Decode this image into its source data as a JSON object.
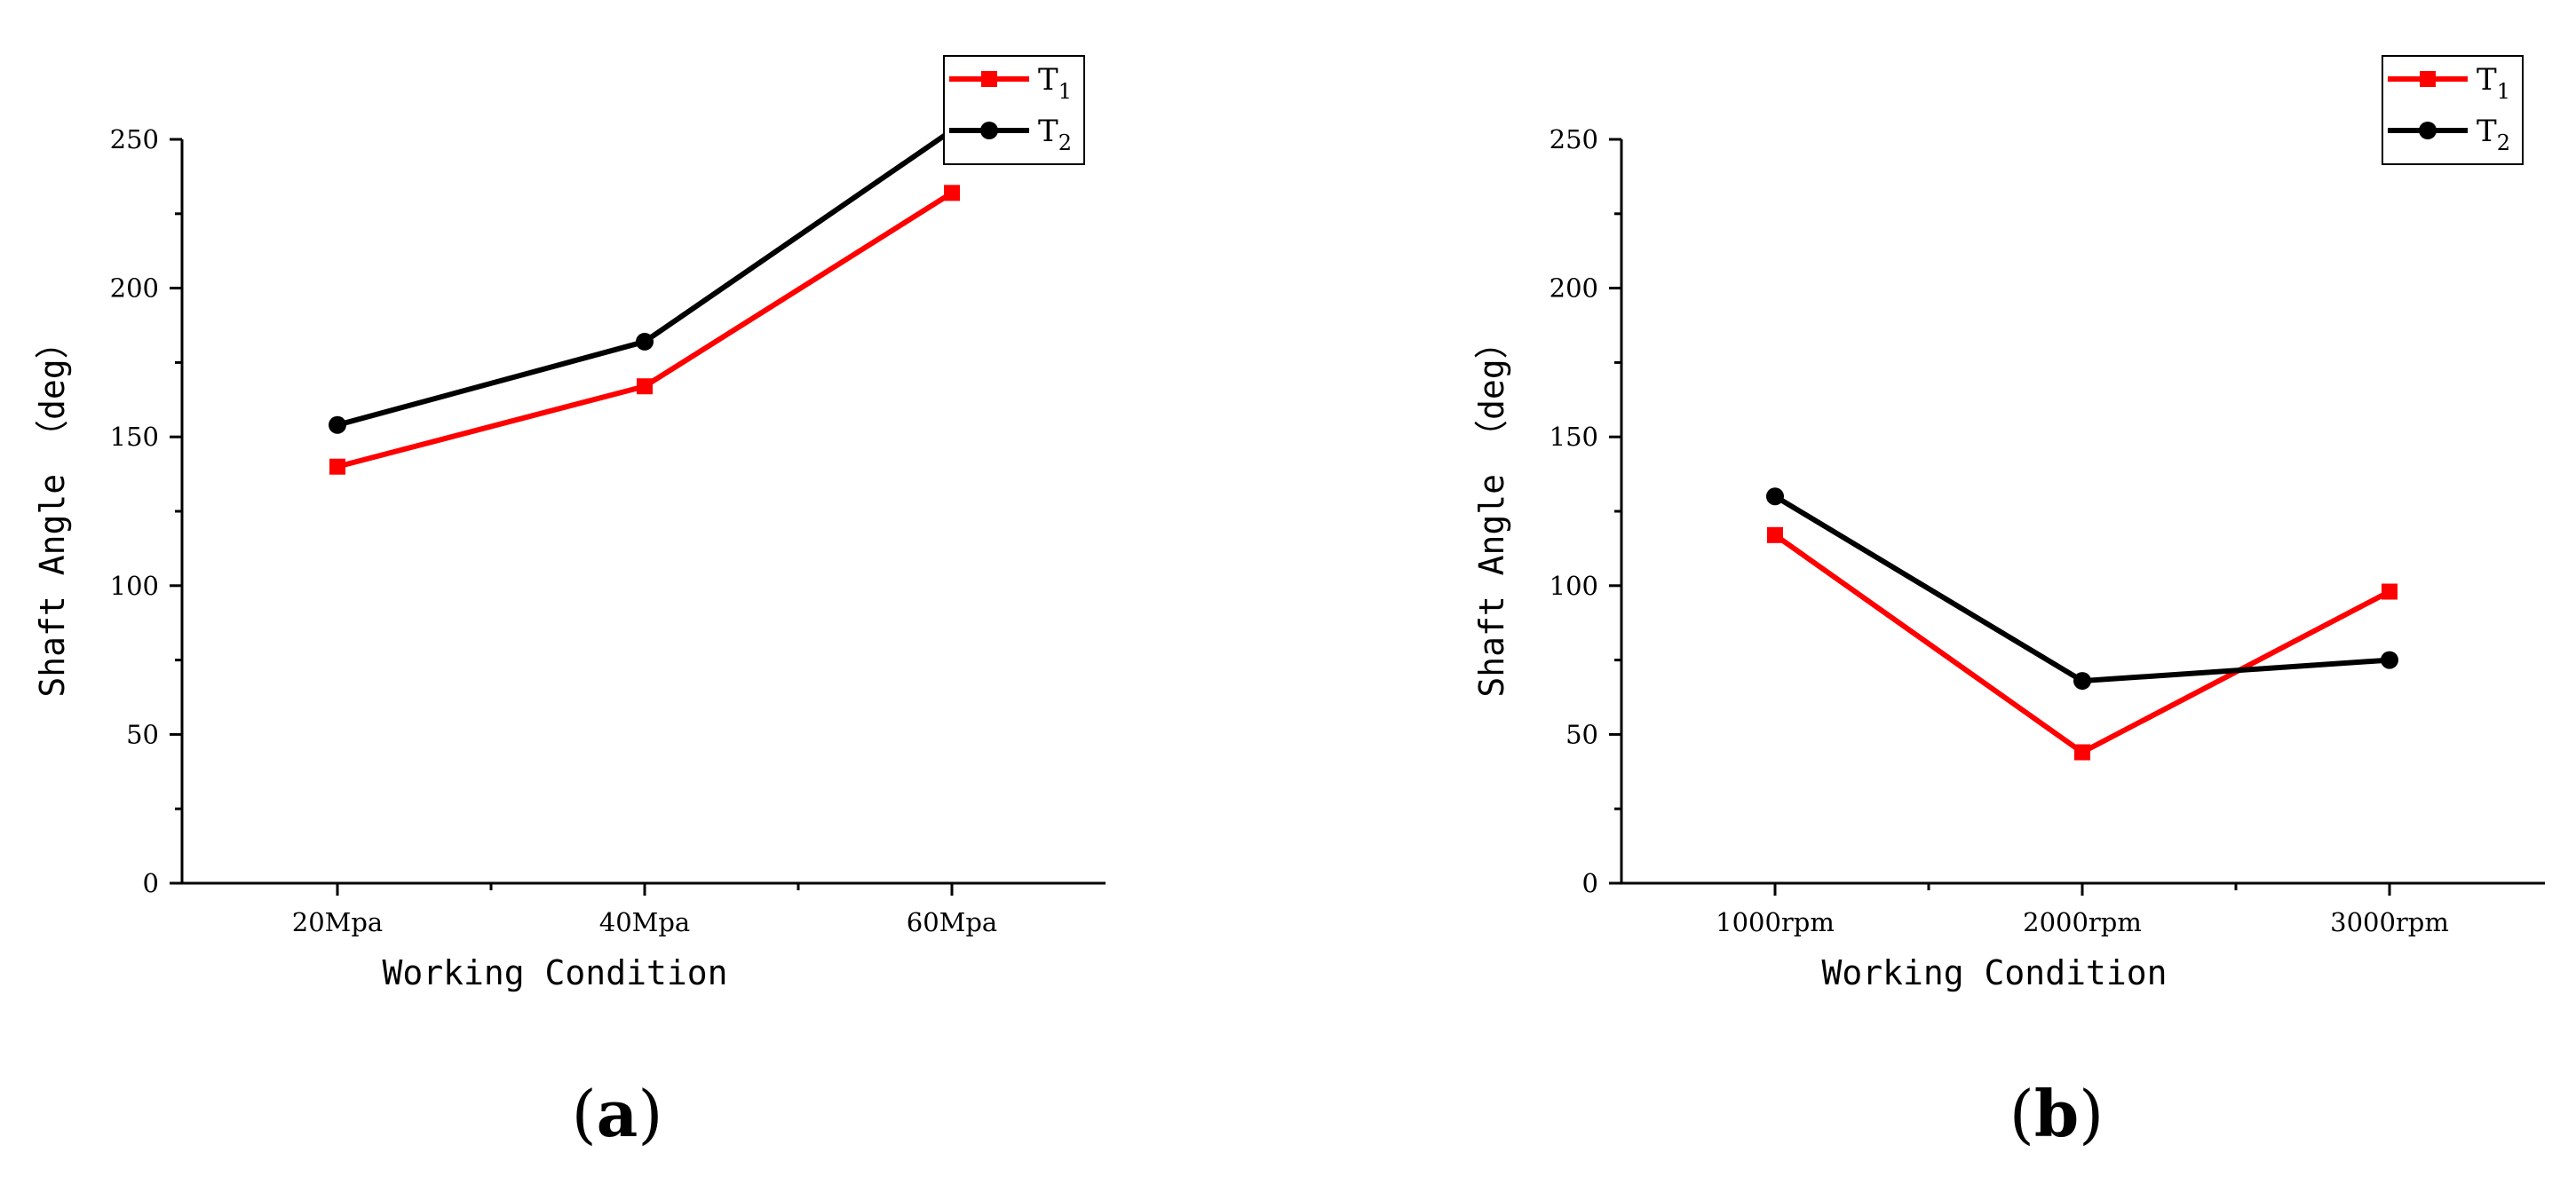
{
  "chart_data": [
    {
      "type": "line",
      "panel_label": "a",
      "categories": [
        "20Mpa",
        "40Mpa",
        "60Mpa"
      ],
      "series": [
        {
          "name": "T",
          "subscript": "1",
          "color": "#ff0000",
          "marker": "square",
          "values": [
            140,
            167,
            232
          ]
        },
        {
          "name": "T",
          "subscript": "2",
          "color": "#000000",
          "marker": "circle",
          "values": [
            154,
            182,
            253
          ]
        }
      ],
      "xlabel": "Working Condition",
      "ylabel": "Shaft Angle （deg）",
      "ylim": [
        0,
        250
      ],
      "yticks": [
        "0",
        "50",
        "100",
        "150",
        "200",
        "250"
      ],
      "grid": false,
      "legend_position": "top-right"
    },
    {
      "type": "line",
      "panel_label": "b",
      "categories": [
        "1000rpm",
        "2000rpm",
        "3000rpm"
      ],
      "series": [
        {
          "name": "T",
          "subscript": "1",
          "color": "#ff0000",
          "marker": "square",
          "values": [
            117,
            44,
            98
          ]
        },
        {
          "name": "T",
          "subscript": "2",
          "color": "#000000",
          "marker": "circle",
          "values": [
            130,
            68,
            75
          ]
        }
      ],
      "xlabel": "Working Condition",
      "ylabel": "Shaft Angle （deg）",
      "ylim": [
        0,
        250
      ],
      "yticks": [
        "0",
        "50",
        "100",
        "150",
        "200",
        "250"
      ],
      "grid": false,
      "legend_position": "top-right"
    }
  ]
}
